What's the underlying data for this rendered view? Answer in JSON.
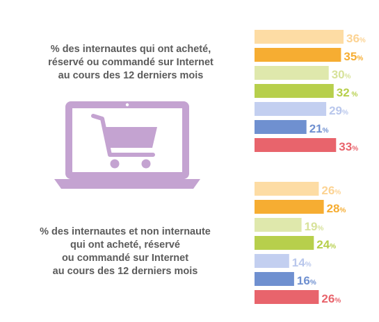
{
  "captions": {
    "top": "% des internautes qui ont acheté,\nréservé ou commandé sur Internet\nau cours des 12 derniers mois",
    "bottom": "% des internautes et non internaute\nqui ont acheté, réservé\nou commandé sur Internet\nau cours des 12 derniers mois"
  },
  "icon": "laptop-shopping-cart-icon",
  "colors": {
    "light_orange": "#fddca4",
    "orange": "#f6ad32",
    "light_green": "#dfe8ac",
    "green": "#b7cf4c",
    "light_blue": "#c3cff0",
    "blue": "#6f90d0",
    "red": "#e8646c",
    "laptop": "#c4a3d1"
  },
  "chart_data": [
    {
      "type": "bar",
      "orientation": "horizontal",
      "title": "% des internautes qui ont acheté, réservé ou commandé sur Internet au cours des 12 derniers mois",
      "unit": "%",
      "values": [
        36,
        35,
        30,
        32,
        29,
        21,
        33
      ],
      "labels": [
        "36%",
        "35%",
        "30%",
        "32 %",
        "29%",
        "21%",
        "33%"
      ],
      "colors": [
        "#fddca4",
        "#f6ad32",
        "#dfe8ac",
        "#b7cf4c",
        "#c3cff0",
        "#6f90d0",
        "#e8646c"
      ]
    },
    {
      "type": "bar",
      "orientation": "horizontal",
      "title": "% des internautes et non internaute qui ont acheté, réservé ou commandé sur Internet au cours des 12 derniers mois",
      "unit": "%",
      "values": [
        26,
        28,
        19,
        24,
        14,
        16,
        26
      ],
      "labels": [
        "26%",
        "28%",
        "19%",
        "24%",
        "14%",
        "16%",
        "26%"
      ],
      "colors": [
        "#fddca4",
        "#f6ad32",
        "#dfe8ac",
        "#b7cf4c",
        "#c3cff0",
        "#6f90d0",
        "#e8646c"
      ]
    }
  ]
}
